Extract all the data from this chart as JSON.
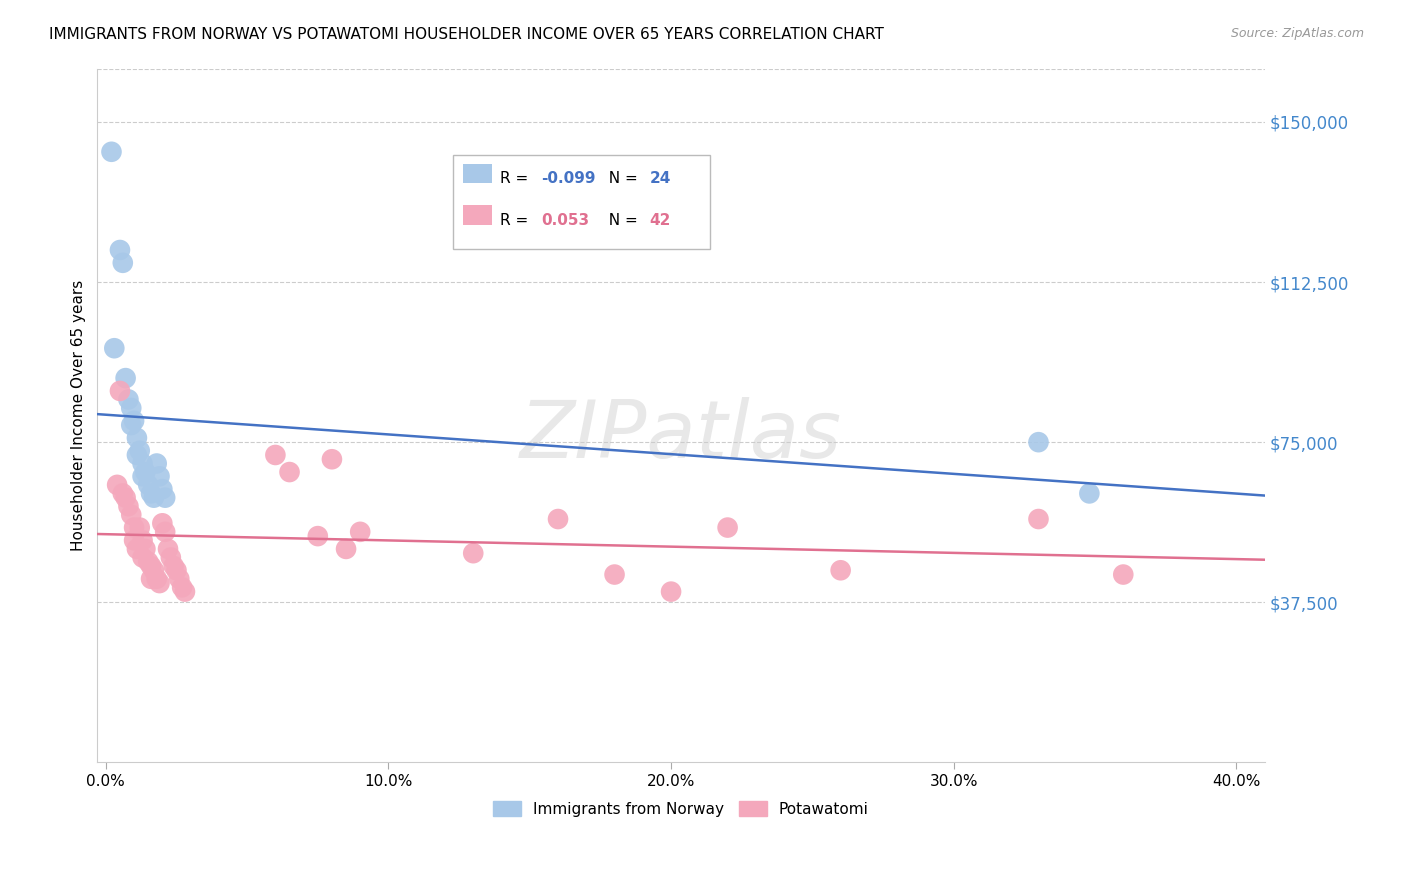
{
  "title": "IMMIGRANTS FROM NORWAY VS POTAWATOMI HOUSEHOLDER INCOME OVER 65 YEARS CORRELATION CHART",
  "source": "Source: ZipAtlas.com",
  "ylabel": "Householder Income Over 65 years",
  "xlabel_ticks": [
    "0.0%",
    "10.0%",
    "20.0%",
    "30.0%",
    "40.0%"
  ],
  "xlabel_vals": [
    0.0,
    0.1,
    0.2,
    0.3,
    0.4
  ],
  "ytick_labels": [
    "$37,500",
    "$75,000",
    "$112,500",
    "$150,000"
  ],
  "ytick_vals": [
    37500,
    75000,
    112500,
    150000
  ],
  "ylim": [
    0,
    162500
  ],
  "xlim": [
    -0.003,
    0.41
  ],
  "norway_R": -0.099,
  "norway_N": 24,
  "potawatomi_R": 0.053,
  "potawatomi_N": 42,
  "norway_color": "#a8c8e8",
  "potawatomi_color": "#f4a8bc",
  "norway_line_color": "#4472c4",
  "potawatomi_line_color": "#e07090",
  "norway_x": [
    0.002,
    0.003,
    0.005,
    0.006,
    0.007,
    0.008,
    0.009,
    0.009,
    0.01,
    0.011,
    0.011,
    0.012,
    0.013,
    0.013,
    0.014,
    0.015,
    0.016,
    0.017,
    0.018,
    0.019,
    0.02,
    0.021,
    0.33,
    0.348
  ],
  "norway_y": [
    143000,
    97000,
    120000,
    117000,
    90000,
    85000,
    83000,
    79000,
    80000,
    76000,
    72000,
    73000,
    70000,
    67000,
    68000,
    65000,
    63000,
    62000,
    70000,
    67000,
    64000,
    62000,
    75000,
    63000
  ],
  "potawatomi_x": [
    0.004,
    0.005,
    0.006,
    0.007,
    0.008,
    0.009,
    0.01,
    0.01,
    0.011,
    0.012,
    0.013,
    0.013,
    0.014,
    0.015,
    0.016,
    0.016,
    0.017,
    0.018,
    0.019,
    0.02,
    0.021,
    0.022,
    0.023,
    0.024,
    0.025,
    0.026,
    0.027,
    0.028,
    0.06,
    0.065,
    0.075,
    0.08,
    0.085,
    0.09,
    0.13,
    0.16,
    0.18,
    0.2,
    0.22,
    0.26,
    0.33,
    0.36
  ],
  "potawatomi_y": [
    65000,
    87000,
    63000,
    62000,
    60000,
    58000,
    55000,
    52000,
    50000,
    55000,
    52000,
    48000,
    50000,
    47000,
    46000,
    43000,
    45000,
    43000,
    42000,
    56000,
    54000,
    50000,
    48000,
    46000,
    45000,
    43000,
    41000,
    40000,
    72000,
    68000,
    53000,
    71000,
    50000,
    54000,
    49000,
    57000,
    44000,
    40000,
    55000,
    45000,
    57000,
    44000
  ],
  "background_color": "#ffffff",
  "grid_color": "#cccccc",
  "title_fontsize": 11,
  "axis_label_color": "#4488cc",
  "source_color": "#999999",
  "watermark": "ZIPatlas"
}
